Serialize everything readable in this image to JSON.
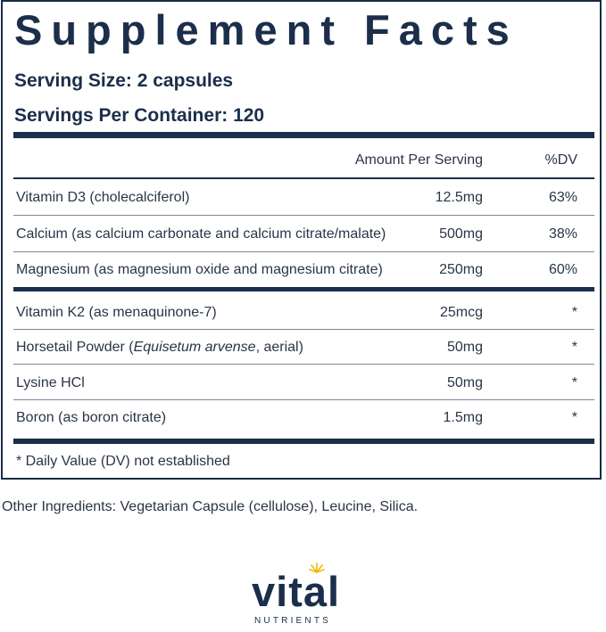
{
  "panel": {
    "title": "Supplement Facts",
    "serving_size": "Serving Size: 2 capsules",
    "servings_per_container": "Servings Per Container: 120",
    "header": {
      "amount": "Amount Per Serving",
      "dv": "%DV"
    },
    "rows": [
      {
        "name": "Vitamin D3 (cholecalciferol)",
        "amount": "12.5mg",
        "dv": "63%"
      },
      {
        "name": "Calcium (as calcium carbonate and calcium citrate/malate)",
        "amount": "500mg",
        "dv": "38%"
      },
      {
        "name": "Magnesium (as magnesium oxide and magnesium citrate)",
        "amount": "250mg",
        "dv": "60%"
      },
      {
        "name": "Vitamin K2 (as menaquinone-7)",
        "amount": "25mcg",
        "dv": "*"
      },
      {
        "name_prefix": "Horsetail Powder (",
        "name_italic": "Equisetum arvense",
        "name_suffix": ", aerial)",
        "amount": "50mg",
        "dv": "*"
      },
      {
        "name": "Lysine HCl",
        "amount": "50mg",
        "dv": "*"
      },
      {
        "name": "Boron (as boron citrate)",
        "amount": "1.5mg",
        "dv": "*"
      }
    ],
    "footnote": "* Daily Value (DV) not established"
  },
  "other_ingredients": "Other Ingredients: Vegetarian Capsule (cellulose), Leucine, Silica.",
  "logo": {
    "word": "vital",
    "sub": "NUTRIENTS",
    "sun_color": "#f2b705",
    "brand_color": "#1b2e4b"
  }
}
